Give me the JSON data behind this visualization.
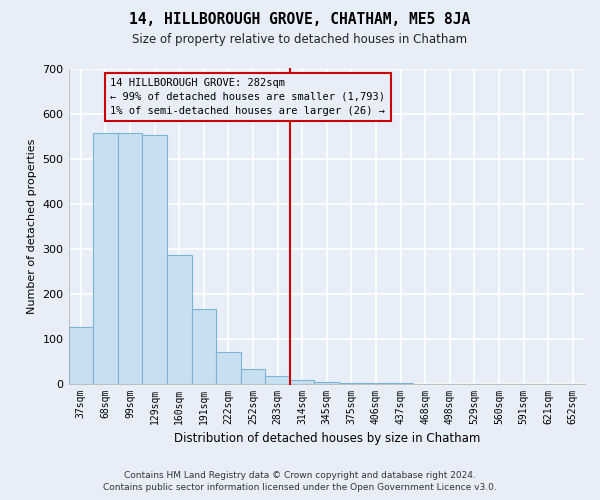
{
  "title": "14, HILLBOROUGH GROVE, CHATHAM, ME5 8JA",
  "subtitle": "Size of property relative to detached houses in Chatham",
  "xlabel": "Distribution of detached houses by size in Chatham",
  "ylabel": "Number of detached properties",
  "bar_labels": [
    "37sqm",
    "68sqm",
    "99sqm",
    "129sqm",
    "160sqm",
    "191sqm",
    "222sqm",
    "252sqm",
    "283sqm",
    "314sqm",
    "345sqm",
    "375sqm",
    "406sqm",
    "437sqm",
    "468sqm",
    "498sqm",
    "529sqm",
    "560sqm",
    "591sqm",
    "621sqm",
    "652sqm"
  ],
  "bar_values": [
    125,
    557,
    557,
    553,
    285,
    165,
    70,
    32,
    17,
    8,
    4,
    2,
    1,
    1,
    0,
    0,
    0,
    0,
    0,
    0,
    0
  ],
  "bar_color": "#c8dff0",
  "bar_edge_color": "#7ab3d4",
  "vline_x_index": 8,
  "vline_color": "#cc0000",
  "annotation_title": "14 HILLBOROUGH GROVE: 282sqm",
  "annotation_line1": "← 99% of detached houses are smaller (1,793)",
  "annotation_line2": "1% of semi-detached houses are larger (26) →",
  "annotation_box_color": "#cc0000",
  "ylim": [
    0,
    700
  ],
  "yticks": [
    0,
    100,
    200,
    300,
    400,
    500,
    600,
    700
  ],
  "footer1": "Contains HM Land Registry data © Crown copyright and database right 2024.",
  "footer2": "Contains public sector information licensed under the Open Government Licence v3.0.",
  "bg_color": "#e8eef8",
  "grid_color": "#ffffff"
}
